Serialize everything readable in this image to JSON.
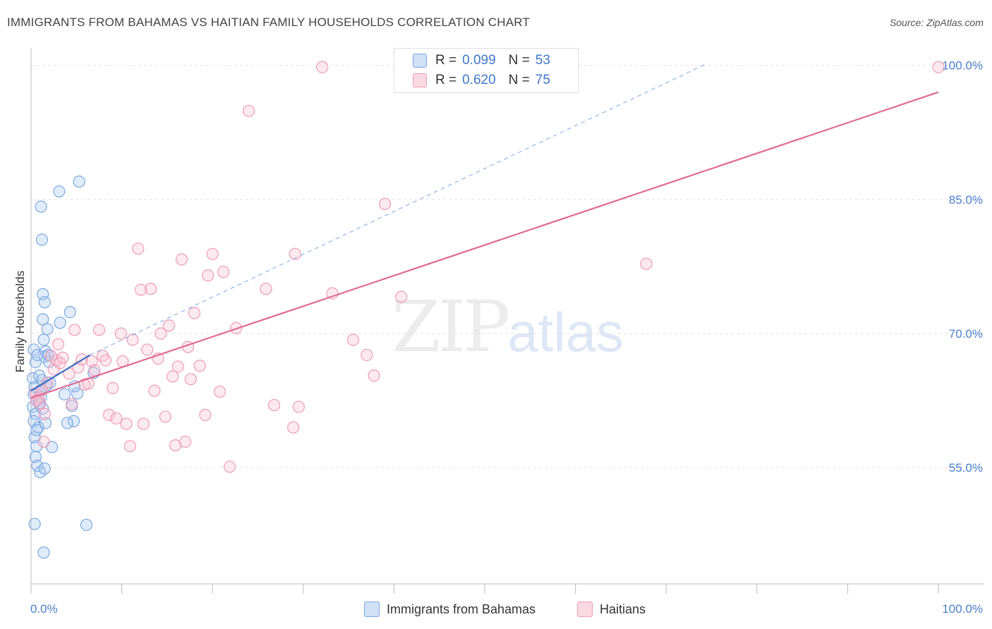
{
  "title": "IMMIGRANTS FROM BAHAMAS VS HAITIAN FAMILY HOUSEHOLDS CORRELATION CHART",
  "source": "Source: ZipAtlas.com",
  "watermark": {
    "zip": "ZIP",
    "atlas": "atlas"
  },
  "legend": {
    "rows": [
      {
        "r_label": "R =",
        "r_value": "0.099",
        "n_label": "N =",
        "n_value": "53",
        "color": "#a9c8f0",
        "border": "#7aa8e0"
      },
      {
        "r_label": "R =",
        "r_value": "0.620",
        "n_label": "N =",
        "n_value": "75",
        "color": "#f8c3d2",
        "border": "#ee9bb6"
      }
    ]
  },
  "bottom_legend": [
    {
      "label": "Immigrants from Bahamas",
      "color": "#a9c8f0",
      "border": "#7aa8e0"
    },
    {
      "label": "Haitians",
      "color": "#f8c3d2",
      "border": "#ee9bb6"
    }
  ],
  "chart_data": {
    "type": "scatter",
    "xlabel": "",
    "ylabel": "Family Households",
    "xlim": [
      0,
      100
    ],
    "ylim": [
      42,
      101
    ],
    "x_tick_labels": [
      "0.0%",
      "100.0%"
    ],
    "y_ticks": [
      55,
      70,
      85,
      100
    ],
    "y_tick_labels": [
      "55.0%",
      "70.0%",
      "85.0%",
      "100.0%"
    ],
    "series": [
      {
        "name": "Immigrants from Bahamas",
        "color": "#7aa8e0",
        "fill": "rgba(169,200,240,0.35)",
        "points": [
          [
            0.3,
            68.2
          ],
          [
            0.5,
            66.8
          ],
          [
            0.2,
            65.0
          ],
          [
            0.4,
            64.0
          ],
          [
            0.3,
            63.2
          ],
          [
            0.6,
            62.5
          ],
          [
            0.2,
            61.8
          ],
          [
            0.5,
            61.0
          ],
          [
            0.3,
            60.2
          ],
          [
            0.8,
            59.5
          ],
          [
            0.4,
            58.4
          ],
          [
            0.6,
            57.4
          ],
          [
            0.5,
            56.2
          ],
          [
            0.7,
            55.2
          ],
          [
            1.0,
            54.5
          ],
          [
            0.4,
            48.7
          ],
          [
            1.4,
            45.5
          ],
          [
            1.1,
            84.2
          ],
          [
            1.2,
            80.5
          ],
          [
            1.3,
            74.4
          ],
          [
            1.5,
            73.5
          ],
          [
            1.3,
            71.6
          ],
          [
            1.4,
            69.3
          ],
          [
            1.8,
            70.5
          ],
          [
            1.6,
            68.0
          ],
          [
            1.5,
            67.4
          ],
          [
            2.0,
            66.8
          ],
          [
            1.2,
            64.8
          ],
          [
            1.7,
            64.2
          ],
          [
            1.0,
            63.6
          ],
          [
            0.9,
            62.2
          ],
          [
            1.3,
            61.6
          ],
          [
            1.6,
            60.0
          ],
          [
            2.3,
            57.3
          ],
          [
            1.5,
            54.9
          ],
          [
            3.1,
            85.9
          ],
          [
            5.3,
            87.0
          ],
          [
            4.3,
            72.4
          ],
          [
            3.2,
            71.2
          ],
          [
            3.7,
            63.2
          ],
          [
            5.1,
            63.3
          ],
          [
            4.8,
            64.1
          ],
          [
            4.5,
            61.9
          ],
          [
            4.7,
            60.2
          ],
          [
            4.0,
            60.0
          ],
          [
            6.9,
            65.6
          ],
          [
            6.1,
            48.6
          ],
          [
            0.7,
            67.6
          ],
          [
            1.1,
            62.9
          ],
          [
            0.9,
            65.3
          ],
          [
            0.6,
            59.2
          ],
          [
            2.1,
            64.5
          ],
          [
            1.9,
            67.6
          ]
        ]
      },
      {
        "name": "Haitians",
        "color": "#ee9bb6",
        "fill": "rgba(248,195,210,0.35)",
        "points": [
          [
            0.5,
            63.3
          ],
          [
            0.8,
            62.8
          ],
          [
            1.0,
            62.2
          ],
          [
            1.2,
            63.7
          ],
          [
            1.5,
            61.0
          ],
          [
            1.8,
            64.5
          ],
          [
            2.2,
            67.5
          ],
          [
            2.5,
            66.0
          ],
          [
            2.8,
            67.0
          ],
          [
            3.0,
            68.8
          ],
          [
            3.2,
            66.7
          ],
          [
            3.5,
            67.3
          ],
          [
            4.2,
            65.5
          ],
          [
            4.5,
            62.1
          ],
          [
            4.8,
            70.4
          ],
          [
            5.2,
            66.2
          ],
          [
            5.6,
            67.1
          ],
          [
            5.9,
            64.3
          ],
          [
            6.3,
            64.4
          ],
          [
            6.7,
            66.9
          ],
          [
            7.0,
            65.9
          ],
          [
            7.5,
            70.4
          ],
          [
            7.9,
            67.5
          ],
          [
            8.2,
            67.0
          ],
          [
            8.6,
            60.9
          ],
          [
            9.0,
            63.9
          ],
          [
            9.4,
            60.5
          ],
          [
            9.9,
            70.0
          ],
          [
            10.1,
            66.9
          ],
          [
            10.5,
            59.9
          ],
          [
            10.9,
            57.4
          ],
          [
            11.2,
            69.3
          ],
          [
            11.8,
            79.5
          ],
          [
            12.1,
            74.9
          ],
          [
            12.4,
            59.9
          ],
          [
            12.8,
            68.2
          ],
          [
            13.2,
            75.0
          ],
          [
            13.6,
            63.6
          ],
          [
            14.0,
            67.2
          ],
          [
            14.3,
            70.0
          ],
          [
            14.8,
            60.7
          ],
          [
            15.2,
            70.9
          ],
          [
            15.6,
            65.2
          ],
          [
            15.9,
            57.5
          ],
          [
            16.2,
            66.3
          ],
          [
            16.6,
            78.3
          ],
          [
            17.0,
            57.9
          ],
          [
            17.3,
            68.5
          ],
          [
            17.6,
            64.9
          ],
          [
            18.0,
            72.3
          ],
          [
            18.6,
            66.4
          ],
          [
            19.2,
            60.9
          ],
          [
            19.5,
            76.5
          ],
          [
            20.0,
            78.9
          ],
          [
            20.8,
            63.5
          ],
          [
            21.2,
            76.9
          ],
          [
            21.9,
            55.1
          ],
          [
            22.6,
            70.6
          ],
          [
            24.0,
            94.9
          ],
          [
            25.9,
            75.0
          ],
          [
            26.8,
            62.0
          ],
          [
            28.9,
            59.5
          ],
          [
            29.1,
            78.9
          ],
          [
            29.5,
            61.8
          ],
          [
            32.1,
            99.8
          ],
          [
            33.2,
            74.5
          ],
          [
            35.5,
            69.3
          ],
          [
            37.0,
            67.6
          ],
          [
            37.8,
            65.3
          ],
          [
            39.0,
            84.5
          ],
          [
            40.8,
            74.1
          ],
          [
            67.8,
            77.8
          ],
          [
            100.0,
            99.8
          ],
          [
            0.6,
            62.5
          ],
          [
            1.4,
            57.9
          ]
        ]
      }
    ],
    "trend_lines": [
      {
        "series": "Immigrants from Bahamas",
        "x": [
          0,
          6.5
        ],
        "y": [
          63.6,
          67.6
        ],
        "style": "solid",
        "color": "#3a6fc2"
      },
      {
        "series": "Immigrants from Bahamas",
        "x": [
          6.5,
          74.5
        ],
        "y": [
          67.6,
          100.2
        ],
        "style": "dashed",
        "color": "#7aa8e0"
      },
      {
        "series": "Haitians",
        "x": [
          0,
          100
        ],
        "y": [
          62.8,
          97.0
        ],
        "style": "solid",
        "color": "#e06a92"
      }
    ]
  }
}
